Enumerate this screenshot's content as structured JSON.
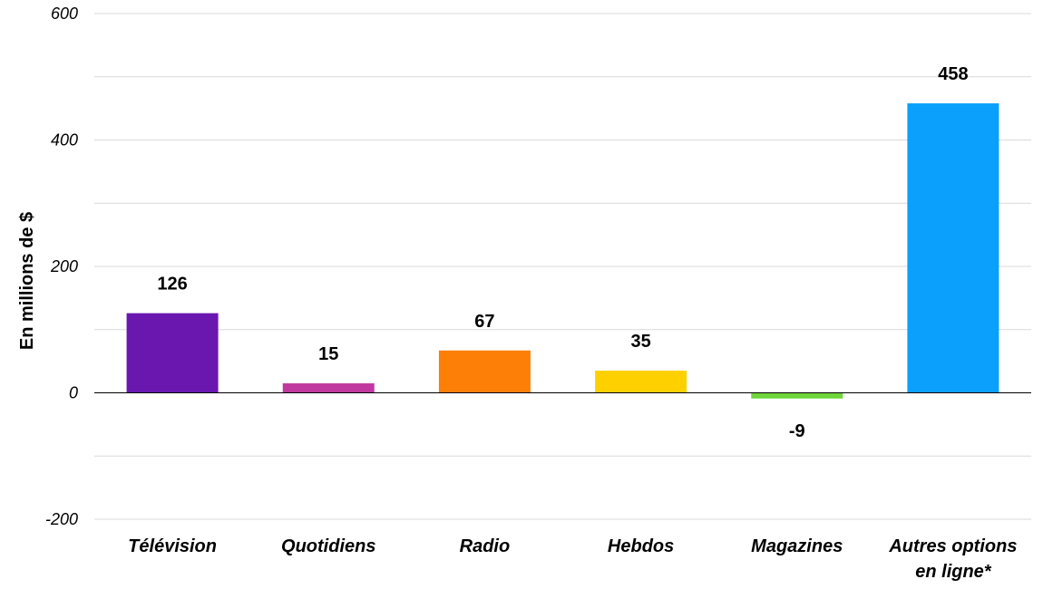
{
  "chart_data": {
    "type": "bar",
    "title": "",
    "xlabel": "",
    "ylabel": "En millions de $",
    "ylim": [
      -200,
      600
    ],
    "yticks": [
      -200,
      0,
      200,
      400,
      600
    ],
    "grid": true,
    "categories": [
      [
        "Télévision"
      ],
      [
        "Quotidiens"
      ],
      [
        "Radio"
      ],
      [
        "Hebdos"
      ],
      [
        "Magazines"
      ],
      [
        "Autres options",
        "en ligne*"
      ]
    ],
    "values": [
      126,
      15,
      67,
      35,
      -9,
      458
    ],
    "colors": [
      "#6a17b0",
      "#c0399f",
      "#fd7f08",
      "#ffd000",
      "#6fd63a",
      "#0aa0fb"
    ]
  }
}
